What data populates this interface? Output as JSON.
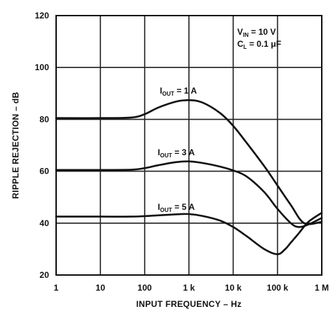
{
  "chart_data": {
    "type": "line",
    "xlabel": "INPUT FREQUENCY – Hz",
    "ylabel": "RIPPLE REJECTION – dB",
    "x_scale": "log",
    "xlim": [
      1,
      1000000
    ],
    "ylim": [
      20,
      120
    ],
    "grid": true,
    "x_ticks": [
      1,
      10,
      100,
      1000,
      10000,
      100000,
      1000000
    ],
    "x_tick_labels": [
      "1",
      "10",
      "100",
      "1 k",
      "10 k",
      "100 k",
      "1 M"
    ],
    "y_ticks": [
      20,
      40,
      60,
      80,
      100,
      120
    ],
    "y_tick_labels": [
      "20",
      "40",
      "60",
      "80",
      "100",
      "120"
    ],
    "conditions": [
      {
        "main": "V",
        "sub": "IN",
        "rest": " = 10 V"
      },
      {
        "main": "C",
        "sub": "L",
        "rest": " = 0.1 μF"
      }
    ],
    "series": [
      {
        "label_main": "I",
        "label_sub": "OUT",
        "label_rest": " = 1 A",
        "x": [
          1,
          10,
          50,
          100,
          200,
          500,
          1000,
          2000,
          5000,
          10000,
          20000,
          50000,
          100000,
          200000,
          400000,
          1000000
        ],
        "y": [
          80.5,
          80.5,
          80.7,
          82,
          84.5,
          86.8,
          87.4,
          86.5,
          82.5,
          77.5,
          71,
          62,
          54.5,
          47,
          40,
          40.5
        ]
      },
      {
        "label_main": "I",
        "label_sub": "OUT",
        "label_rest": " = 3 A",
        "x": [
          1,
          10,
          50,
          100,
          200,
          500,
          1000,
          2000,
          5000,
          10000,
          20000,
          50000,
          100000,
          200000,
          300000,
          500000,
          1000000
        ],
        "y": [
          60.5,
          60.5,
          60.6,
          61.2,
          62.3,
          63.5,
          63.8,
          63.2,
          61.8,
          60.3,
          58,
          52,
          45.5,
          40,
          38.5,
          39.5,
          42
        ]
      },
      {
        "label_main": "I",
        "label_sub": "OUT",
        "label_rest": " = 5 A",
        "x": [
          1,
          10,
          50,
          100,
          200,
          500,
          1000,
          2000,
          5000,
          10000,
          20000,
          50000,
          100000,
          150000,
          200000,
          300000,
          500000,
          1000000
        ],
        "y": [
          42.5,
          42.5,
          42.5,
          42.7,
          43,
          43.4,
          43.5,
          42.8,
          41,
          38.5,
          35,
          30,
          28,
          30,
          32.5,
          36,
          40.5,
          44
        ]
      }
    ]
  }
}
